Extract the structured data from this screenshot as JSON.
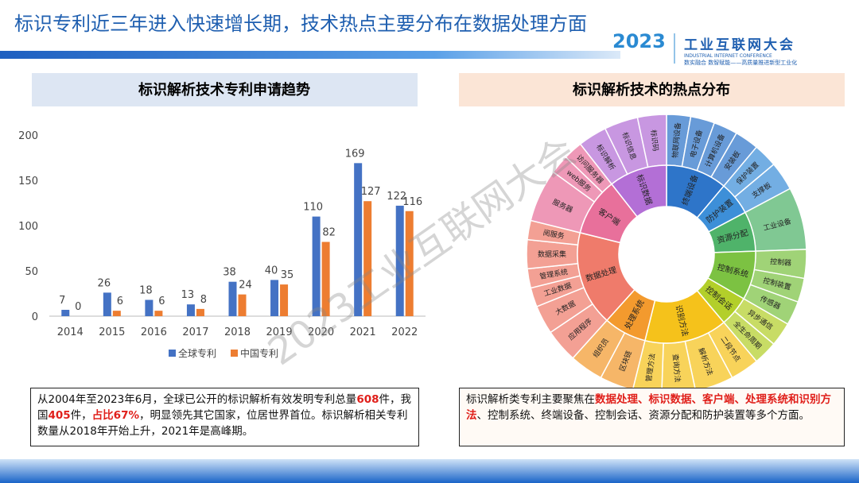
{
  "header": {
    "title": "标识专利近三年进入快速增长期，技术热点主要分布在数据处理方面"
  },
  "logo": {
    "year": "2023",
    "name": "工业互联网大会",
    "english": "INDUSTRIAL INTERNET CONFERENCE",
    "slogan": "数实融合  数智赋能——高质量推进新型工业化"
  },
  "watermark": "2023工业互联网大会",
  "chart_data": [
    {
      "type": "bar",
      "title": "标识解析技术专利申请趋势",
      "categories": [
        "2014",
        "2015",
        "2016",
        "2017",
        "2018",
        "2019",
        "2020",
        "2021",
        "2022"
      ],
      "series": [
        {
          "name": "全球专利",
          "color": "#4472c4",
          "values": [
            7,
            26,
            18,
            13,
            38,
            40,
            110,
            169,
            122
          ]
        },
        {
          "name": "中国专利",
          "color": "#ed7d31",
          "values": [
            0,
            6,
            6,
            8,
            24,
            35,
            82,
            127,
            116
          ]
        }
      ],
      "ylim": [
        0,
        200
      ],
      "yticks": [
        0,
        50,
        100,
        150,
        200
      ],
      "grid": false,
      "data_labels": true,
      "legend": "bottom"
    },
    {
      "type": "sunburst",
      "title": "标识解析技术的热点分布",
      "groups": [
        {
          "name": "终端设备",
          "color": "#2e75c9",
          "children": [
            {
              "name": "物联网设备",
              "value": 10
            },
            {
              "name": "电子设备",
              "value": 10
            },
            {
              "name": "计算机设备",
              "value": 10
            },
            {
              "name": "安装板",
              "value": 10
            }
          ]
        },
        {
          "name": "防护装置",
          "color": "#3d8fd8",
          "children": [
            {
              "name": "保护装置",
              "value": 10
            },
            {
              "name": "支撑板",
              "value": 12
            }
          ]
        },
        {
          "name": "资源分配",
          "color": "#4fb36a",
          "children": [
            {
              "name": "工业设备",
              "value": 26
            }
          ]
        },
        {
          "name": "控制系统",
          "color": "#7cc242",
          "children": [
            {
              "name": "控制器",
              "value": 12
            },
            {
              "name": "控制装置",
              "value": 10
            },
            {
              "name": "传感器",
              "value": 10
            }
          ]
        },
        {
          "name": "控制会话",
          "color": "#b3cf2a",
          "children": [
            {
              "name": "异步通信",
              "value": 10
            },
            {
              "name": "全生命周期",
              "value": 10
            }
          ]
        },
        {
          "name": "识别方法",
          "color": "#f5c21b",
          "children": [
            {
              "name": "二段节点",
              "value": 12
            },
            {
              "name": "解析方法",
              "value": 16
            },
            {
              "name": "查询方法",
              "value": 14
            },
            {
              "name": "管理方法",
              "value": 12
            }
          ]
        },
        {
          "name": "处理系统",
          "color": "#f39a2e",
          "children": [
            {
              "name": "区块链",
              "value": 14
            },
            {
              "name": "组织员",
              "value": 14
            }
          ]
        },
        {
          "name": "数据处理",
          "color": "#ef7b6b",
          "children": [
            {
              "name": "应用程序",
              "value": 14
            },
            {
              "name": "大数据",
              "value": 12
            },
            {
              "name": "工业数据",
              "value": 8
            },
            {
              "name": "管理系统",
              "value": 8
            },
            {
              "name": "数据采集",
              "value": 12
            },
            {
              "name": "阅服务",
              "value": 8
            }
          ]
        },
        {
          "name": "客户端",
          "color": "#e8709b",
          "children": [
            {
              "name": "服务器",
              "value": 22
            },
            {
              "name": "web服务",
              "value": 8
            },
            {
              "name": "访问服务器",
              "value": 8
            }
          ]
        },
        {
          "name": "标识数据",
          "color": "#b36fd6",
          "children": [
            {
              "name": "标识解析",
              "value": 12
            },
            {
              "name": "标识信息",
              "value": 14
            },
            {
              "name": "标识码",
              "value": 12
            }
          ]
        }
      ]
    }
  ],
  "notes": [
    {
      "runs": [
        {
          "text": "从2004年至2023年6月，全球已公开的标识解析有效发明专利总量"
        },
        {
          "text": "608",
          "highlight": true
        },
        {
          "text": "件，我国"
        },
        {
          "text": "405",
          "highlight": true
        },
        {
          "text": "件，"
        },
        {
          "text": "占比67%",
          "highlight": true
        },
        {
          "text": "，明显领先其它国家，位居世界首位。标识解析相关专利数量从2018年开始上升，2021年是高峰期。"
        }
      ]
    },
    {
      "runs": [
        {
          "text": "标识解析类专利主要聚焦在"
        },
        {
          "text": "数据处理、标识数据、客户端、处理系统和识别方法",
          "highlight": true
        },
        {
          "text": "、控制系统、终端设备、控制会话、资源分配和防护装置等多个方面。"
        }
      ]
    }
  ]
}
